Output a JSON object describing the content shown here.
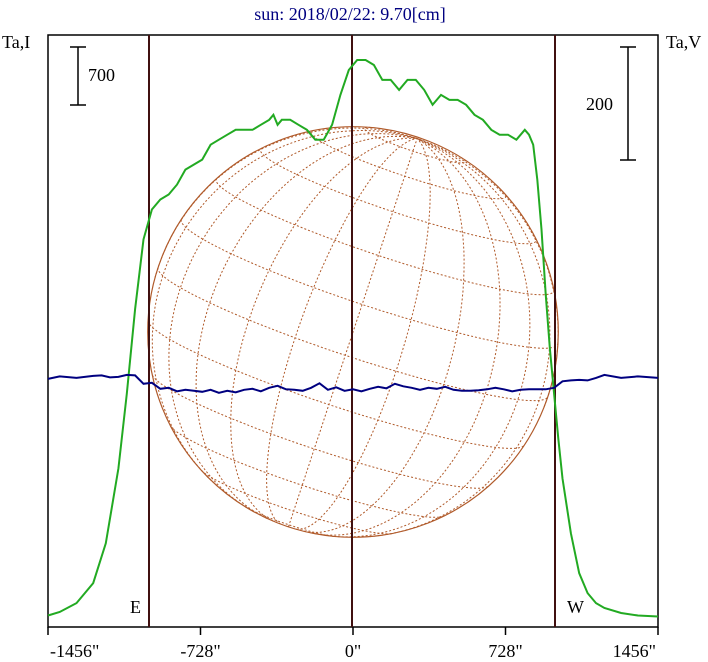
{
  "chart_data": {
    "type": "line",
    "title": "sun: 2018/02/22: 9.70[cm]",
    "ylabel_left": "Ta,I",
    "ylabel_right": "Ta,V",
    "scale_left": "700",
    "scale_right": "200",
    "east_label": "E",
    "west_label": "W",
    "x_ticks": [
      {
        "value": -1456,
        "label": "-1456\""
      },
      {
        "value": -728,
        "label": "-728\""
      },
      {
        "value": 0,
        "label": "0\""
      },
      {
        "value": 728,
        "label": "728\""
      },
      {
        "value": 1456,
        "label": "1456\""
      }
    ],
    "xlim": [
      -1456,
      1456
    ],
    "ylim": [
      0,
      1
    ],
    "disk_radius_arcsec": 980,
    "colors": {
      "intensity": "#22aa22",
      "polarization": "#000080",
      "disk": "#b05a2a",
      "limb_lines": "#401010",
      "title": "#000080"
    },
    "series": [
      {
        "key": "intensity",
        "x": [
          -1456,
          -1400,
          -1320,
          -1240,
          -1180,
          -1120,
          -1080,
          -1040,
          -1000,
          -960,
          -920,
          -880,
          -840,
          -800,
          -760,
          -720,
          -680,
          -640,
          -600,
          -560,
          -520,
          -480,
          -440,
          -400,
          -380,
          -360,
          -340,
          -300,
          -260,
          -220,
          -180,
          -140,
          -100,
          -60,
          -20,
          20,
          60,
          100,
          140,
          180,
          220,
          260,
          300,
          340,
          380,
          420,
          460,
          500,
          540,
          580,
          620,
          660,
          700,
          740,
          780,
          820,
          840,
          860,
          880,
          900,
          920,
          940,
          960,
          980,
          1000,
          1040,
          1080,
          1120,
          1160,
          1200,
          1280,
          1360,
          1456
        ],
        "y": [
          0.005,
          0.012,
          0.03,
          0.07,
          0.15,
          0.3,
          0.45,
          0.62,
          0.76,
          0.82,
          0.84,
          0.85,
          0.87,
          0.9,
          0.91,
          0.92,
          0.95,
          0.96,
          0.97,
          0.98,
          0.98,
          0.98,
          0.99,
          1.0,
          1.01,
          0.99,
          1.0,
          1.0,
          0.99,
          0.98,
          0.96,
          0.96,
          0.99,
          1.05,
          1.1,
          1.12,
          1.12,
          1.11,
          1.08,
          1.08,
          1.06,
          1.08,
          1.08,
          1.06,
          1.03,
          1.05,
          1.04,
          1.04,
          1.03,
          1.01,
          1.0,
          0.98,
          0.97,
          0.97,
          0.96,
          0.98,
          0.97,
          0.95,
          0.88,
          0.78,
          0.65,
          0.54,
          0.45,
          0.36,
          0.28,
          0.17,
          0.09,
          0.05,
          0.03,
          0.02,
          0.01,
          0.005,
          0.003
        ]
      },
      {
        "key": "polarization",
        "x": [
          -1456,
          -1400,
          -1320,
          -1240,
          -1200,
          -1160,
          -1120,
          -1080,
          -1040,
          -1000,
          -960,
          -920,
          -880,
          -840,
          -800,
          -760,
          -720,
          -680,
          -640,
          -600,
          -560,
          -520,
          -480,
          -440,
          -400,
          -360,
          -320,
          -280,
          -240,
          -200,
          -160,
          -120,
          -80,
          -40,
          0,
          40,
          80,
          120,
          160,
          200,
          240,
          280,
          320,
          360,
          400,
          440,
          480,
          520,
          560,
          600,
          640,
          680,
          720,
          760,
          800,
          840,
          880,
          920,
          960,
          1000,
          1040,
          1080,
          1120,
          1160,
          1200,
          1280,
          1360,
          1456
        ],
        "y": [
          0.48,
          0.485,
          0.482,
          0.486,
          0.487,
          0.483,
          0.484,
          0.488,
          0.487,
          0.47,
          0.472,
          0.46,
          0.462,
          0.455,
          0.458,
          0.456,
          0.454,
          0.458,
          0.452,
          0.456,
          0.453,
          0.458,
          0.46,
          0.455,
          0.462,
          0.466,
          0.459,
          0.458,
          0.456,
          0.462,
          0.471,
          0.458,
          0.463,
          0.456,
          0.459,
          0.455,
          0.46,
          0.464,
          0.461,
          0.47,
          0.465,
          0.462,
          0.458,
          0.462,
          0.46,
          0.464,
          0.458,
          0.456,
          0.456,
          0.457,
          0.459,
          0.462,
          0.459,
          0.455,
          0.458,
          0.459,
          0.459,
          0.459,
          0.462,
          0.475,
          0.477,
          0.478,
          0.477,
          0.482,
          0.488,
          0.482,
          0.485,
          0.482
        ]
      }
    ]
  }
}
